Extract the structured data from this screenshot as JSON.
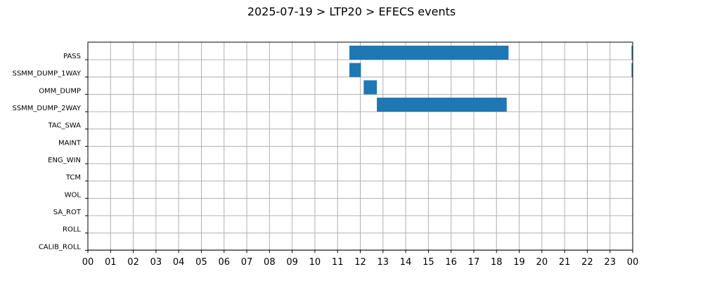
{
  "chart_data": {
    "type": "gantt",
    "title": "2025-07-19 > LTP20 > EFECS events",
    "xlabel": "",
    "ylabel": "",
    "x_ticks": [
      "00",
      "01",
      "02",
      "03",
      "04",
      "05",
      "06",
      "07",
      "08",
      "09",
      "10",
      "11",
      "12",
      "13",
      "14",
      "15",
      "16",
      "17",
      "18",
      "19",
      "20",
      "21",
      "22",
      "23",
      "00"
    ],
    "xlim": [
      0,
      24
    ],
    "grid": true,
    "bar_color": "#1f77b4",
    "categories": [
      "PASS",
      "SSMM_DUMP_1WAY",
      "OMM_DUMP",
      "SSMM_DUMP_2WAY",
      "TAC_SWA",
      "MAINT",
      "ENG_WIN",
      "TCM",
      "WOL",
      "SA_ROT",
      "ROLL",
      "CALIB_ROLL"
    ],
    "events": [
      {
        "category": "PASS",
        "start": 11.52,
        "end": 18.53
      },
      {
        "category": "PASS",
        "start": 23.95,
        "end": 24.0
      },
      {
        "category": "SSMM_DUMP_1WAY",
        "start": 11.52,
        "end": 12.03
      },
      {
        "category": "SSMM_DUMP_1WAY",
        "start": 23.95,
        "end": 24.0
      },
      {
        "category": "OMM_DUMP",
        "start": 12.15,
        "end": 12.73
      },
      {
        "category": "SSMM_DUMP_2WAY",
        "start": 12.73,
        "end": 18.45
      }
    ]
  }
}
